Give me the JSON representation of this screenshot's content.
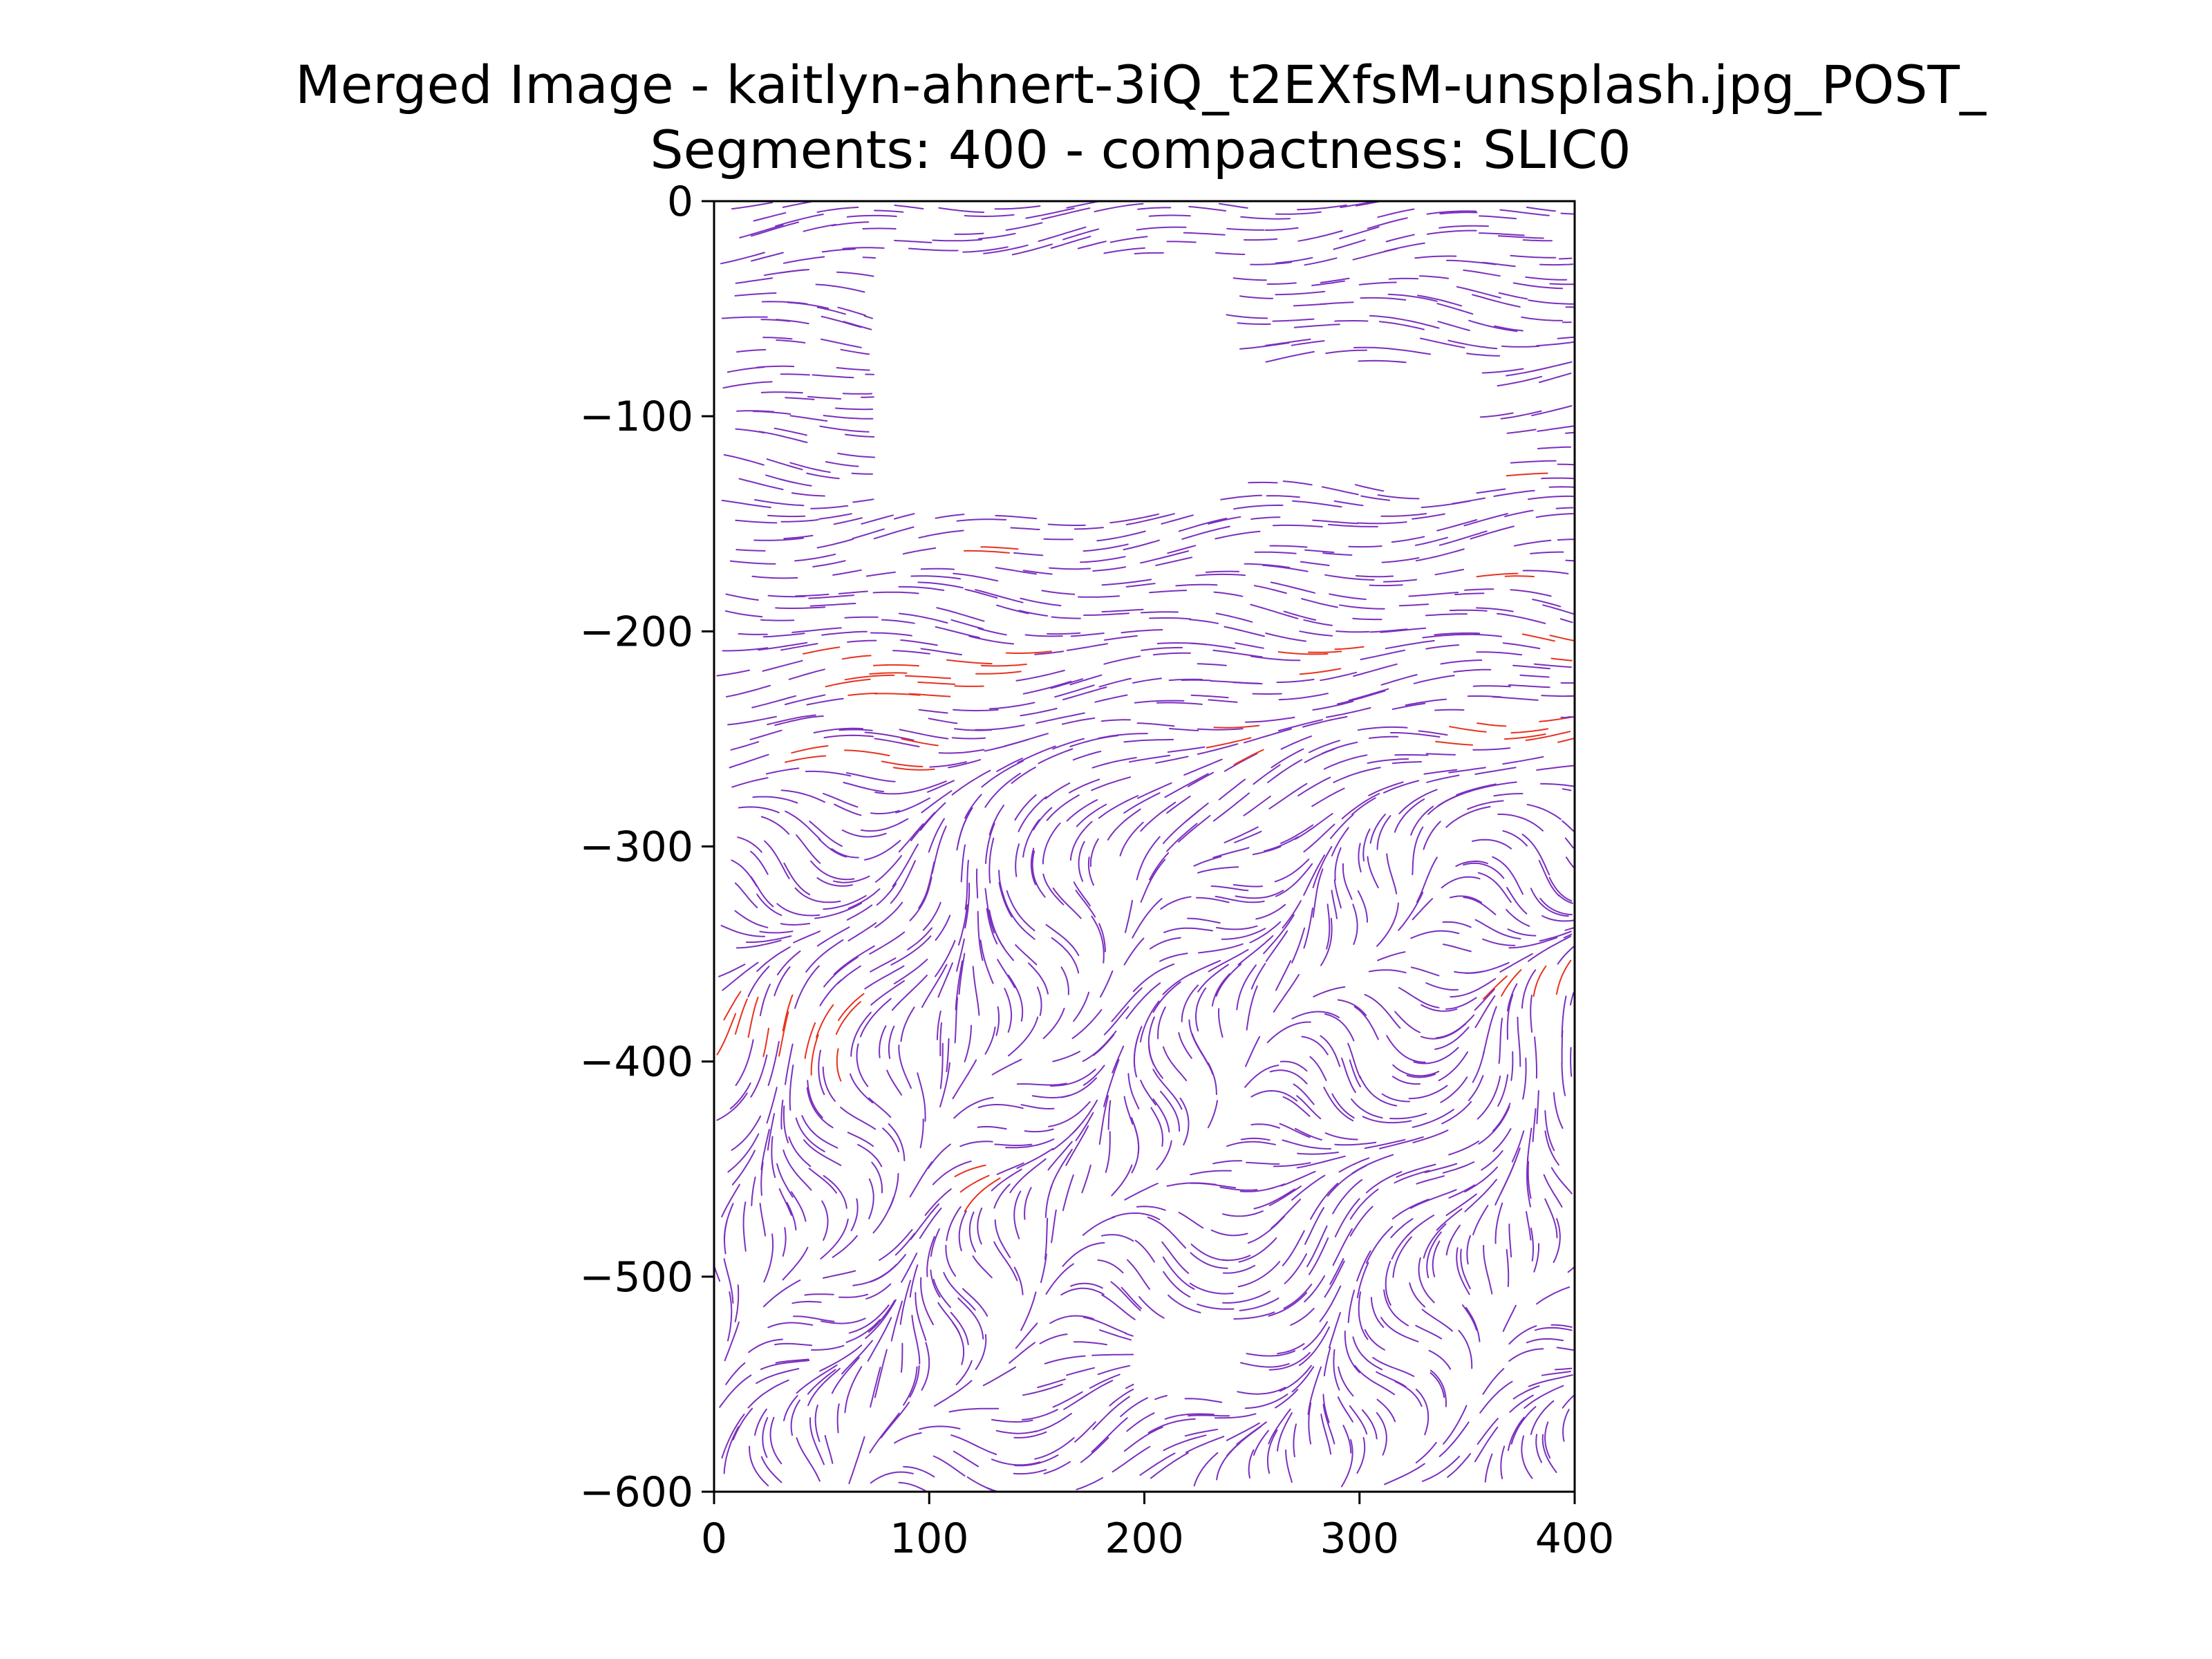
{
  "chart_data": {
    "type": "streamplot",
    "title": "Merged Image - kaitlyn-ahnert-3iQ_t2EXfsM-unsplash.jpg_POST_",
    "subtitle": "Segments: 400 - compactness: SLIC0",
    "xlim": [
      0,
      400
    ],
    "ylim": [
      -600,
      0
    ],
    "x_ticks": [
      "0",
      "100",
      "200",
      "300",
      "400"
    ],
    "y_ticks": [
      "0",
      "−100",
      "−200",
      "−300",
      "−400",
      "−500",
      "−600"
    ],
    "xlabel": "",
    "ylabel": "",
    "grid": false,
    "colors": {
      "stream_main": "#7b2fbf",
      "stream_high": "#e8321e",
      "axes": "#000000"
    },
    "blank_regions": [
      {
        "x": [
          75,
          235
        ],
        "y": [
          -145,
          -25
        ]
      },
      {
        "x": [
          230,
          355
        ],
        "y": [
          -130,
          -75
        ]
      },
      {
        "x": [
          195,
          240
        ],
        "y": [
          -555,
          -520
        ]
      }
    ],
    "red_clusters": [
      {
        "x": [
          40,
          140
        ],
        "y": [
          -230,
          -210
        ]
      },
      {
        "x": [
          30,
          90
        ],
        "y": [
          -265,
          -250
        ]
      },
      {
        "x": [
          0,
          60
        ],
        "y": [
          -410,
          -380
        ]
      },
      {
        "x": [
          225,
          245
        ],
        "y": [
          -265,
          -235
        ]
      },
      {
        "x": [
          255,
          300
        ],
        "y": [
          -220,
          -205
        ]
      },
      {
        "x": [
          330,
          400
        ],
        "y": [
          -255,
          -240
        ]
      },
      {
        "x": [
          110,
          125
        ],
        "y": [
          -475,
          -450
        ]
      },
      {
        "x": [
          350,
          395
        ],
        "y": [
          -375,
          -360
        ]
      },
      {
        "x": [
          345,
          370
        ],
        "y": [
          -130,
          -120
        ]
      },
      {
        "x": [
          105,
          135
        ],
        "y": [
          -165,
          -155
        ]
      },
      {
        "x": [
          345,
          370
        ],
        "y": [
          -180,
          -165
        ]
      },
      {
        "x": [
          375,
          400
        ],
        "y": [
          -215,
          -200
        ]
      }
    ]
  }
}
